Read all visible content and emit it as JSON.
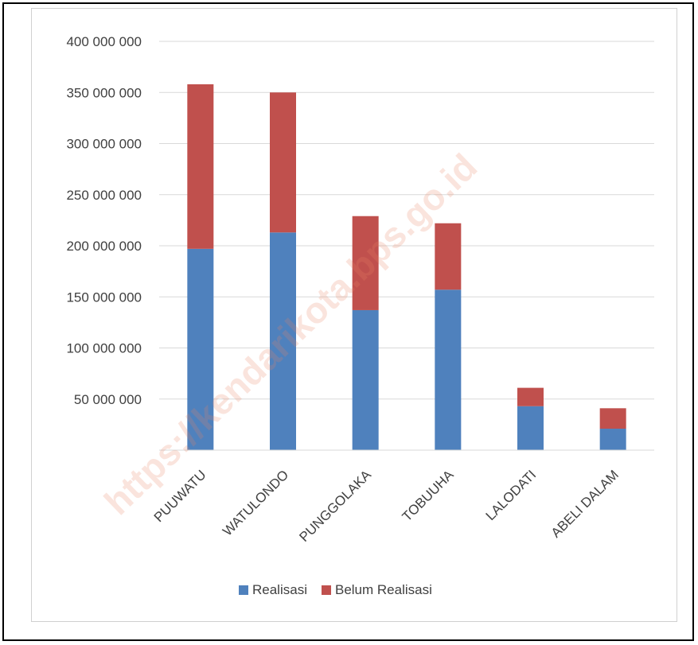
{
  "chart_data": {
    "type": "bar",
    "stacked": true,
    "title": "",
    "xlabel": "",
    "ylabel": "",
    "categories": [
      "PUUWATU",
      "WATULONDO",
      "PUNGGOLAKA",
      "TOBUUHA",
      "LALODATI",
      "ABELI DALAM"
    ],
    "series": [
      {
        "name": "Realisasi",
        "color": "#4f81bd",
        "values": [
          197000000,
          213000000,
          137000000,
          157000000,
          43000000,
          21000000
        ]
      },
      {
        "name": "Belum Realisasi",
        "color": "#c0504d",
        "values": [
          161000000,
          137000000,
          92000000,
          65000000,
          18000000,
          20000000
        ]
      }
    ],
    "ylim": [
      0,
      400000000
    ],
    "yticks": [
      50000000,
      100000000,
      150000000,
      200000000,
      250000000,
      300000000,
      350000000,
      400000000
    ],
    "ytick_labels": [
      "50 000 000",
      "100 000 000",
      "150 000 000",
      "200 000 000",
      "250 000 000",
      "300 000 000",
      "350 000 000",
      "400 000 000"
    ],
    "grid": true,
    "legend_position": "bottom",
    "watermark": "https://kendarikota.bps.go.id"
  }
}
